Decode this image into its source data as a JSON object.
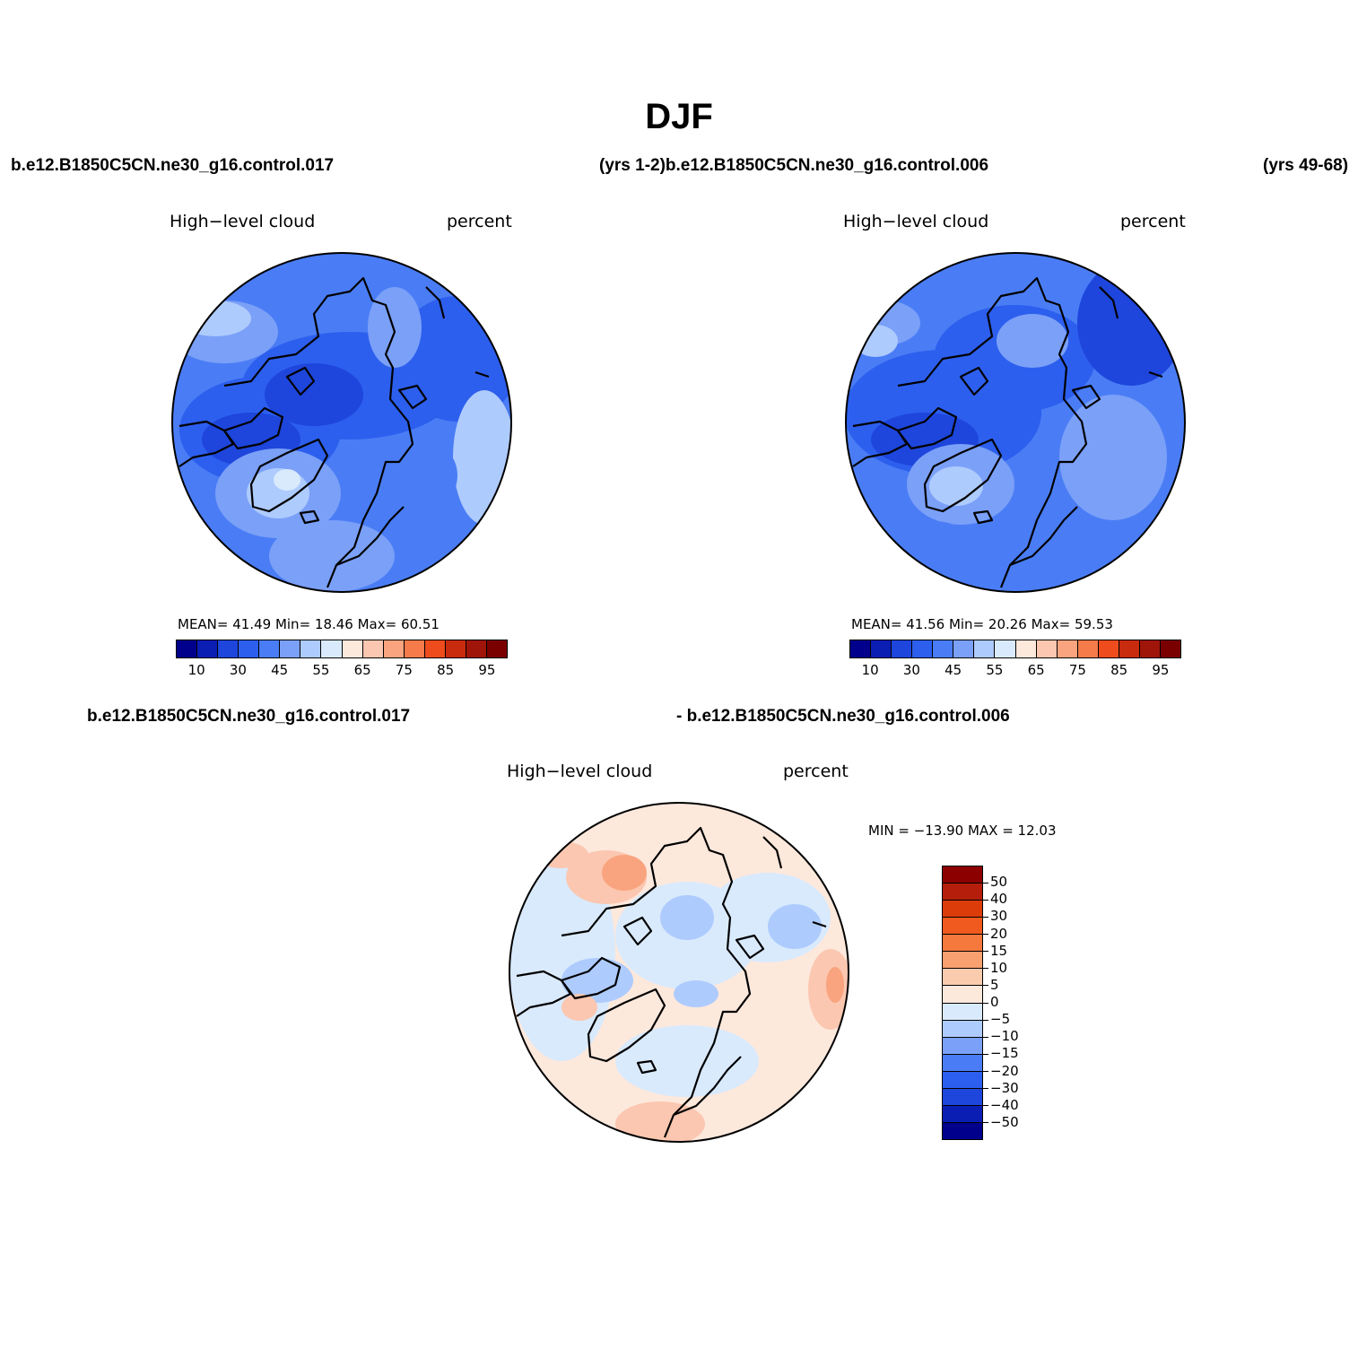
{
  "figure": {
    "title": "DJF",
    "header_left": "b.e12.B1850C5CN.ne30_g16.control.017",
    "header_mid": "(yrs 1-2)b.e12.B1850C5CN.ne30_g16.control.006",
    "header_right": "(yrs 49-68)",
    "diff_label_left": "b.e12.B1850C5CN.ne30_g16.control.017",
    "diff_label_right": "- b.e12.B1850C5CN.ne30_g16.control.006"
  },
  "panels": [
    {
      "id": "case1",
      "variable": "High−level cloud",
      "units": "percent",
      "stats": "MEAN=   41.49   Min=   18.46   Max=   60.51",
      "mean": 41.49,
      "min": 18.46,
      "max": 60.51,
      "colorbar_ticks": [
        "10",
        "30",
        "45",
        "55",
        "65",
        "75",
        "85",
        "95"
      ]
    },
    {
      "id": "case2",
      "variable": "High−level cloud",
      "units": "percent",
      "stats": "MEAN=   41.56   Min=   20.26   Max=   59.53",
      "mean": 41.56,
      "min": 20.26,
      "max": 59.53,
      "colorbar_ticks": [
        "10",
        "30",
        "45",
        "55",
        "65",
        "75",
        "85",
        "95"
      ]
    },
    {
      "id": "difference",
      "variable": "High−level cloud",
      "units": "percent",
      "stats": "MIN = −13.90 MAX =   12.03",
      "min": -13.9,
      "max": 12.03,
      "colorbar_ticks": [
        "50",
        "40",
        "30",
        "20",
        "15",
        "10",
        "5",
        "0",
        "−5",
        "−10",
        "−15",
        "−20",
        "−30",
        "−40",
        "−50"
      ]
    }
  ],
  "colors": {
    "seq_colorbar": [
      "#00008c",
      "#0a1eb4",
      "#1e46dc",
      "#2d5fee",
      "#4a7df5",
      "#7ba0f8",
      "#aecbfd",
      "#d9eafd",
      "#fde8dc",
      "#fbc7b0",
      "#f9a47e",
      "#f57b4a",
      "#ee4c1c",
      "#c82b0e",
      "#a0150a",
      "#7a0000"
    ],
    "div_colorbar": [
      "#8c0000",
      "#b41e0a",
      "#dc3c0a",
      "#f05a1e",
      "#f5783c",
      "#f8a070",
      "#fbcbae",
      "#fde8dc",
      "#d9eafd",
      "#aecbfd",
      "#7ba0f8",
      "#4a7df5",
      "#2d5fee",
      "#1e46dc",
      "#0a1eb4",
      "#00008c"
    ]
  }
}
